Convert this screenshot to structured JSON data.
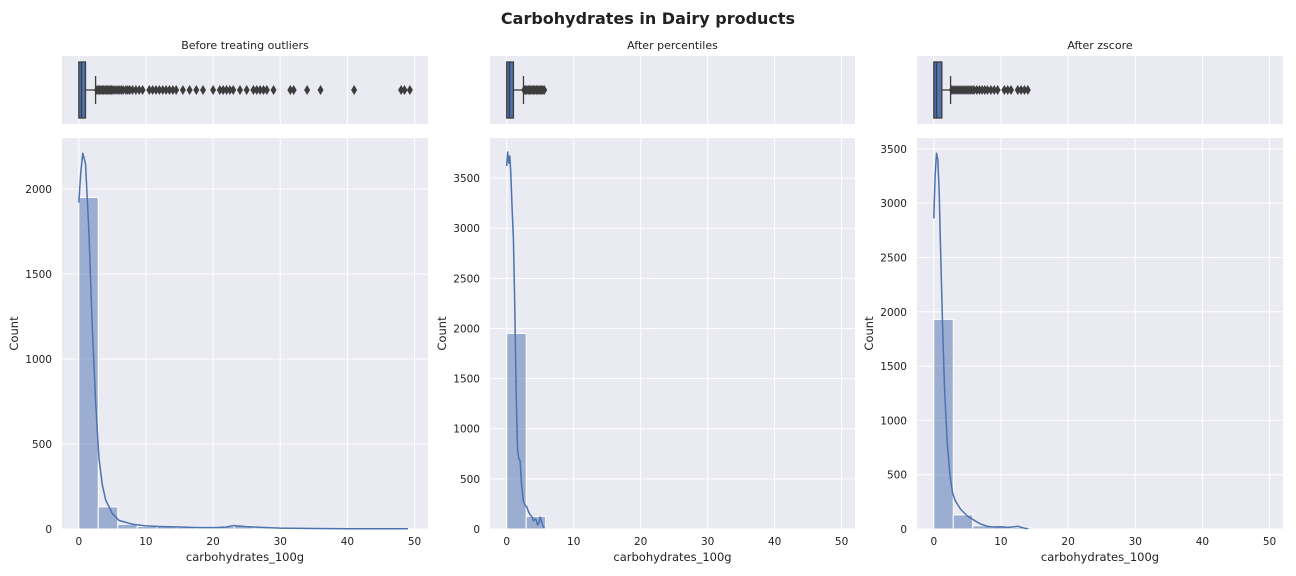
{
  "figure": {
    "title": "Carbohydrates in Dairy products",
    "colors": {
      "panel_bg": "#eaeaf2",
      "grid": "#ffffff",
      "bar": "#4c72b0",
      "kde": "#4c72b0",
      "text": "#222222"
    }
  },
  "chart_data": [
    {
      "type": "bar",
      "subtitle": "Before treating outliers",
      "xlabel": "carbohydrates_100g",
      "ylabel": "Count",
      "xlim": [
        -2.5,
        52
      ],
      "ylim": [
        0,
        2300
      ],
      "xticks": [
        0,
        10,
        20,
        30,
        40,
        50
      ],
      "yticks": [
        0,
        500,
        1000,
        1500,
        2000
      ],
      "bin_width": 2.9,
      "bins_start": 0,
      "values": [
        1950,
        130,
        28,
        15,
        16,
        10,
        5,
        14,
        18,
        8,
        6,
        4,
        3,
        3,
        2,
        2,
        2
      ],
      "kde": {
        "x": [
          0,
          0.3,
          0.6,
          1,
          1.5,
          2,
          2.5,
          3,
          3.5,
          4,
          5,
          6,
          8,
          10,
          12,
          15,
          18,
          20,
          22,
          23,
          25,
          28,
          30,
          35,
          40,
          45,
          49
        ],
        "y": [
          1920,
          2100,
          2210,
          2150,
          1750,
          1200,
          750,
          420,
          260,
          170,
          90,
          50,
          28,
          18,
          15,
          12,
          8,
          8,
          12,
          20,
          14,
          8,
          5,
          3,
          2,
          2,
          1
        ]
      },
      "boxplot": {
        "q1": 0.0,
        "median": 0.4,
        "q3": 1.0,
        "whisker_low": 0,
        "whisker_high": 2.5,
        "outliers": [
          2.7,
          2.9,
          3.1,
          3.3,
          3.5,
          3.7,
          3.9,
          4.1,
          4.3,
          4.5,
          4.7,
          4.9,
          5.1,
          5.4,
          5.7,
          6.0,
          6.3,
          6.6,
          7.0,
          7.3,
          7.6,
          8.0,
          8.5,
          9.0,
          9.5,
          10.5,
          11.0,
          11.5,
          12.0,
          12.5,
          13.0,
          13.5,
          14.0,
          14.5,
          15.5,
          16.5,
          17.5,
          18.5,
          20.0,
          21.0,
          21.5,
          22.0,
          22.5,
          23.0,
          24.0,
          25.0,
          26.0,
          26.5,
          27.0,
          27.5,
          28.0,
          29.0,
          31.5,
          32.0,
          34.0,
          36.0,
          41.0,
          48.0,
          48.5,
          49.3
        ]
      }
    },
    {
      "type": "bar",
      "subtitle": "After percentiles",
      "xlabel": "carbohydrates_100g",
      "ylabel": "Count",
      "xlim": [
        -2.5,
        52
      ],
      "ylim": [
        0,
        3900
      ],
      "xticks": [
        0,
        10,
        20,
        30,
        40,
        50
      ],
      "yticks": [
        0,
        500,
        1000,
        1500,
        2000,
        2500,
        3000,
        3500
      ],
      "bin_width": 2.9,
      "bins_start": 0,
      "values": [
        1950,
        125
      ],
      "kde": {
        "x": [
          0,
          0.15,
          0.3,
          0.45,
          0.6,
          0.8,
          1.0,
          1.2,
          1.4,
          1.6,
          1.8,
          2.0,
          2.2,
          2.5,
          2.8,
          3.0,
          3.2,
          3.5,
          3.8,
          4.0,
          4.2,
          4.4,
          4.6,
          4.8,
          5.0,
          5.2,
          5.4,
          5.6
        ],
        "y": [
          3620,
          3760,
          3650,
          3720,
          3550,
          3200,
          2900,
          2200,
          1400,
          800,
          700,
          680,
          450,
          270,
          230,
          220,
          180,
          140,
          120,
          80,
          100,
          90,
          40,
          60,
          120,
          70,
          30,
          10
        ]
      },
      "boxplot": {
        "q1": 0.0,
        "median": 0.4,
        "q3": 1.0,
        "whisker_low": 0,
        "whisker_high": 2.5,
        "outliers": [
          2.6,
          2.8,
          3.0,
          3.2,
          3.4,
          3.6,
          3.8,
          4.0,
          4.2,
          4.4,
          4.6,
          4.8,
          5.0,
          5.2,
          5.4,
          5.6
        ]
      }
    },
    {
      "type": "bar",
      "subtitle": "After zscore",
      "xlabel": "carbohydrates_100g",
      "ylabel": "Count",
      "xlim": [
        -2.5,
        52
      ],
      "ylim": [
        0,
        3600
      ],
      "xticks": [
        0,
        10,
        20,
        30,
        40,
        50
      ],
      "yticks": [
        0,
        500,
        1000,
        1500,
        2000,
        2500,
        3000,
        3500
      ],
      "bin_width": 2.9,
      "bins_start": 0,
      "values": [
        1930,
        130,
        30,
        20,
        15
      ],
      "kde": {
        "x": [
          0,
          0.2,
          0.4,
          0.6,
          0.8,
          1.0,
          1.3,
          1.6,
          2.0,
          2.4,
          2.8,
          3.2,
          3.6,
          4.0,
          5.0,
          6.0,
          7.0,
          8.0,
          9.0,
          10.0,
          11.0,
          12.0,
          12.5,
          13.0,
          13.5,
          14.0
        ],
        "y": [
          2860,
          3250,
          3460,
          3400,
          3100,
          2600,
          1900,
          1300,
          800,
          500,
          330,
          260,
          220,
          180,
          120,
          80,
          45,
          25,
          18,
          20,
          15,
          20,
          25,
          15,
          8,
          3
        ]
      },
      "boxplot": {
        "q1": 0.0,
        "median": 0.4,
        "q3": 1.2,
        "whisker_low": 0,
        "whisker_high": 2.5,
        "outliers": [
          2.7,
          3.0,
          3.3,
          3.6,
          3.9,
          4.2,
          4.5,
          4.8,
          5.1,
          5.4,
          5.7,
          6.0,
          6.4,
          6.8,
          7.2,
          7.6,
          8.0,
          8.5,
          9.0,
          9.5,
          10.5,
          11.0,
          11.5,
          12.5,
          13.0,
          13.5,
          14.0
        ]
      }
    }
  ]
}
